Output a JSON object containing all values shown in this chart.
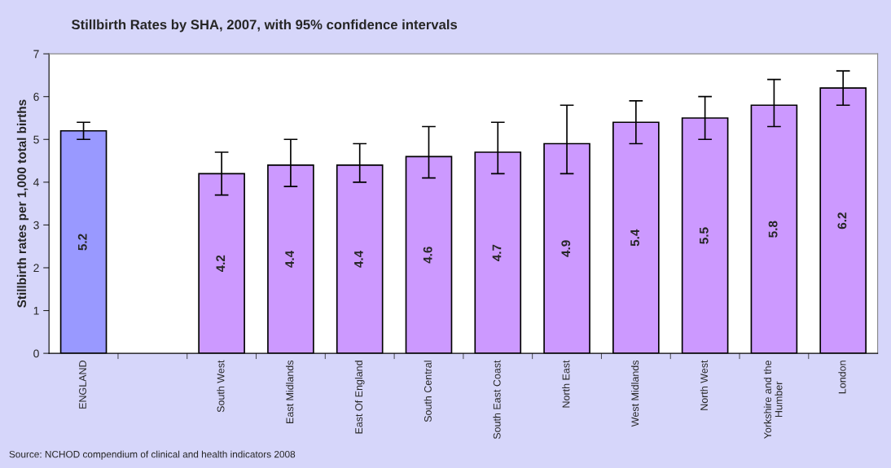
{
  "chart_data": {
    "type": "bar",
    "title": "Stillbirth Rates by SHA, 2007, with 95% confidence intervals",
    "ylabel": "Stillbirth rates per 1,000 total births",
    "categories": [
      "ENGLAND",
      null,
      "South West",
      "East Midlands",
      "East Of England",
      "South Central",
      "South East Coast",
      "North East",
      "West Midlands",
      "North West",
      "Yorkshire and the\nHumber",
      "London"
    ],
    "values": [
      5.2,
      null,
      4.2,
      4.4,
      4.4,
      4.6,
      4.7,
      4.9,
      5.4,
      5.5,
      5.8,
      6.2
    ],
    "colors": [
      "#9999ff",
      null,
      "#cc99ff",
      "#cc99ff",
      "#cc99ff",
      "#cc99ff",
      "#cc99ff",
      "#cc99ff",
      "#cc99ff",
      "#cc99ff",
      "#cc99ff",
      "#cc99ff"
    ],
    "errors": [
      [
        5.0,
        5.4
      ],
      null,
      [
        3.7,
        4.7
      ],
      [
        3.9,
        5.0
      ],
      [
        4.0,
        4.9
      ],
      [
        4.1,
        5.3
      ],
      [
        4.2,
        5.4
      ],
      [
        4.2,
        5.8
      ],
      [
        4.9,
        5.9
      ],
      [
        5.0,
        6.0
      ],
      [
        5.3,
        6.4
      ],
      [
        5.8,
        6.6
      ]
    ],
    "data_labels": true,
    "ylim": [
      0,
      7
    ],
    "yticks": [
      0,
      1,
      2,
      3,
      4,
      5,
      6,
      7
    ],
    "grid": false,
    "annotations": [
      "Source: NCHOD compendium of clinical and health indicators 2008"
    ]
  }
}
